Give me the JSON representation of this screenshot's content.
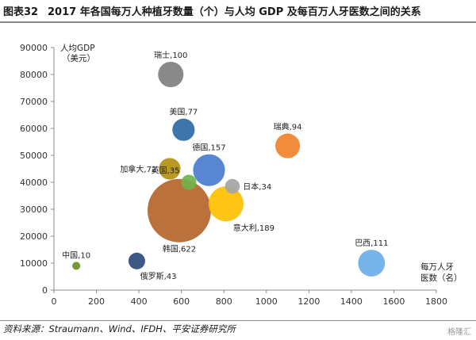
{
  "figure": {
    "number": "图表32",
    "title": "2017 年各国每万人种植牙数量（个）与人均 GDP 及每百万人牙医数之间的关系",
    "source": "资料来源：Straumann、Wind、IFDH、平安证券研究所",
    "watermark": "格隆汇"
  },
  "chart_data": {
    "type": "bubble",
    "ylabel_line1": "人均GDP",
    "ylabel_line2": "（美元）",
    "xlabel_line1": "每万人牙",
    "xlabel_line2": "医数（名）",
    "xlim": [
      0,
      1800
    ],
    "ylim": [
      0,
      90000
    ],
    "xticks": [
      0,
      200,
      400,
      600,
      800,
      1000,
      1200,
      1400,
      1600,
      1800
    ],
    "yticks": [
      0,
      10000,
      20000,
      30000,
      40000,
      50000,
      60000,
      70000,
      80000,
      90000
    ],
    "grid": false,
    "points": [
      {
        "label": "瑞士,100",
        "country": "瑞士",
        "implants": 100,
        "x": 550,
        "y": 80000,
        "color": "#7f7f7f",
        "label_pos": "top"
      },
      {
        "label": "美国,77",
        "country": "美国",
        "implants": 77,
        "x": 610,
        "y": 59500,
        "color": "#2e6aa5",
        "label_pos": "top"
      },
      {
        "label": "瑞典,94",
        "country": "瑞典",
        "implants": 94,
        "x": 1100,
        "y": 53500,
        "color": "#f0822c",
        "label_pos": "top"
      },
      {
        "label": "德国,157",
        "country": "德国",
        "implants": 157,
        "x": 730,
        "y": 44500,
        "color": "#4b7ccd",
        "label_pos": "top"
      },
      {
        "label": "加拿大,72",
        "country": "加拿大",
        "implants": 72,
        "x": 545,
        "y": 45000,
        "color": "#b38f12",
        "label_pos": "left"
      },
      {
        "label": "英国,35",
        "country": "英国",
        "implants": 35,
        "x": 635,
        "y": 40000,
        "color": "#6fb34a",
        "label_pos": "top-left"
      },
      {
        "label": "日本,34",
        "country": "日本",
        "implants": 34,
        "x": 840,
        "y": 38500,
        "color": "#a5a5a5",
        "label_pos": "right"
      },
      {
        "label": "意大利,189",
        "country": "意大利",
        "implants": 189,
        "x": 810,
        "y": 32000,
        "color": "#ffc000",
        "label_pos": "bottom-right"
      },
      {
        "label": "韩国,622",
        "country": "韩国",
        "implants": 622,
        "x": 590,
        "y": 29500,
        "color": "#b5652a",
        "label_pos": "bottom"
      },
      {
        "label": "中国,10",
        "country": "中国",
        "implants": 10,
        "x": 105,
        "y": 9000,
        "color": "#6b8e23",
        "label_pos": "top"
      },
      {
        "label": "俄罗斯,43",
        "country": "俄罗斯",
        "implants": 43,
        "x": 390,
        "y": 10800,
        "color": "#2e4a7a",
        "label_pos": "bottom-right"
      },
      {
        "label": "巴西,111",
        "country": "巴西",
        "implants": 111,
        "x": 1495,
        "y": 10000,
        "color": "#6aaee8",
        "label_pos": "top"
      }
    ]
  }
}
